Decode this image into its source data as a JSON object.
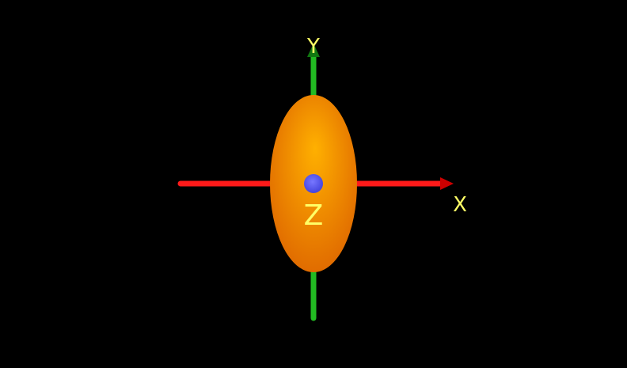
{
  "scene": {
    "background_color": "#000000",
    "label_color": "#ffff66",
    "axes": {
      "x": {
        "label": "X",
        "color": "#ff1a1a",
        "arrow_color": "#cc0000"
      },
      "y": {
        "label": "Y",
        "color": "#22bb22",
        "arrow_color": "#117711"
      },
      "z": {
        "label": "Z",
        "color": "#5555ee"
      }
    },
    "object": {
      "shape": "ellipsoid",
      "color_light": "#ffb000",
      "color_dark": "#e06a00"
    }
  }
}
